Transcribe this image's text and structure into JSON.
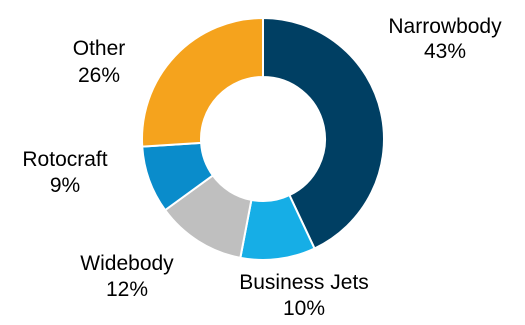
{
  "chart_data": {
    "type": "pie",
    "title": "",
    "categories": [
      "Narrowbody",
      "Business Jets",
      "Widebody",
      "Rotocraft",
      "Other"
    ],
    "values": [
      43,
      10,
      12,
      9,
      26
    ],
    "value_labels": [
      "43%",
      "10%",
      "12%",
      "9%",
      "26%"
    ],
    "donut": true,
    "start_angle_deg": 0,
    "direction": "clockwise",
    "colors": [
      "#003f63",
      "#16aee6",
      "#bfbfbf",
      "#0a8ccb",
      "#f5a31d"
    ],
    "legend": "none"
  }
}
